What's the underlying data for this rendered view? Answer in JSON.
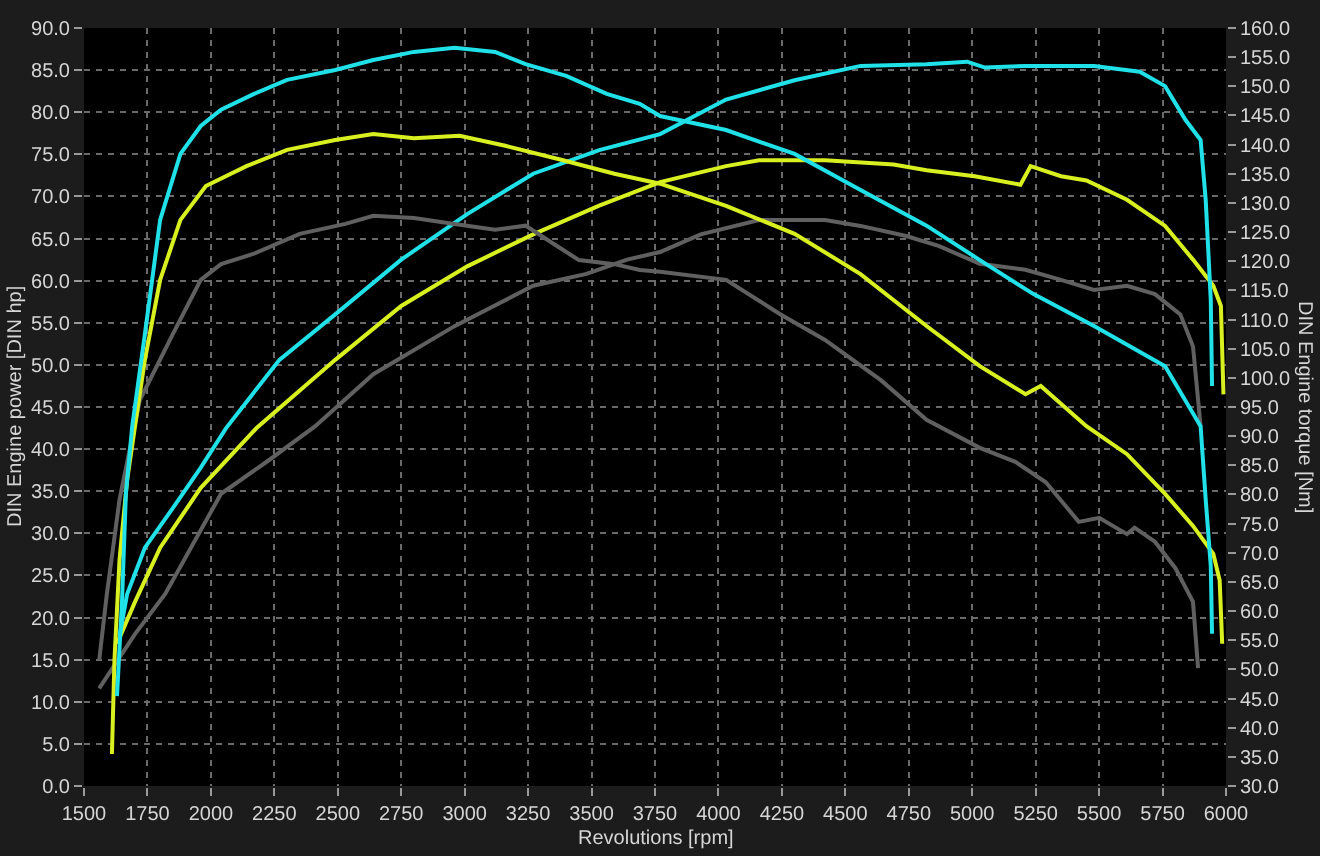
{
  "chart_data": {
    "type": "line",
    "xlabel": "Revolutions [rpm]",
    "ylabel": "DIN Engine power [DIN hp]",
    "y2label": "DIN Engine torque [Nm]",
    "xlim": [
      1500,
      6000
    ],
    "xticks": [
      1500,
      1750,
      2000,
      2250,
      2500,
      2750,
      3000,
      3250,
      3500,
      3750,
      4000,
      4250,
      4500,
      4750,
      5000,
      5250,
      5500,
      5750,
      6000
    ],
    "ylim": [
      0,
      90
    ],
    "yticks": [
      {
        "value": 0,
        "label": "0.0"
      },
      {
        "value": 5,
        "label": "5.0"
      },
      {
        "value": 10,
        "label": "10.0"
      },
      {
        "value": 15,
        "label": "15.0"
      },
      {
        "value": 20,
        "label": "20.0"
      },
      {
        "value": 25,
        "label": "25.0"
      },
      {
        "value": 30,
        "label": "30.0"
      },
      {
        "value": 35,
        "label": "35.0"
      },
      {
        "value": 40,
        "label": "40.0"
      },
      {
        "value": 45,
        "label": "45.0"
      },
      {
        "value": 50,
        "label": "50.0"
      },
      {
        "value": 55,
        "label": "55.0"
      },
      {
        "value": 60,
        "label": "60.0"
      },
      {
        "value": 65,
        "label": "65.0"
      },
      {
        "value": 70,
        "label": "70.0"
      },
      {
        "value": 75,
        "label": "75.0"
      },
      {
        "value": 80,
        "label": "80.0"
      },
      {
        "value": 85,
        "label": "85.0"
      },
      {
        "value": 90,
        "label": "90.0"
      }
    ],
    "y2lim": [
      30,
      160
    ],
    "y2ticks": [
      {
        "value": 30,
        "label": "30.0"
      },
      {
        "value": 35,
        "label": "35.0"
      },
      {
        "value": 40,
        "label": "40.0"
      },
      {
        "value": 45,
        "label": "45.0"
      },
      {
        "value": 50,
        "label": "50.0"
      },
      {
        "value": 55,
        "label": "55.0"
      },
      {
        "value": 60,
        "label": "60.0"
      },
      {
        "value": 65,
        "label": "65.0"
      },
      {
        "value": 70,
        "label": "70.0"
      },
      {
        "value": 75,
        "label": "75.0"
      },
      {
        "value": 80,
        "label": "80.0"
      },
      {
        "value": 85,
        "label": "85.0"
      },
      {
        "value": 90,
        "label": "90.0"
      },
      {
        "value": 95,
        "label": "95.0"
      },
      {
        "value": 100,
        "label": "100.0"
      },
      {
        "value": 105,
        "label": "105.0"
      },
      {
        "value": 110,
        "label": "110.0"
      },
      {
        "value": 115,
        "label": "115.0"
      },
      {
        "value": 120,
        "label": "120.0"
      },
      {
        "value": 125,
        "label": "125.0"
      },
      {
        "value": 130,
        "label": "130.0"
      },
      {
        "value": 135,
        "label": "135.0"
      },
      {
        "value": 140,
        "label": "140.0"
      },
      {
        "value": 145,
        "label": "145.0"
      },
      {
        "value": 150,
        "label": "150.0"
      },
      {
        "value": 155,
        "label": "155.0"
      },
      {
        "value": 160,
        "label": "160.0"
      }
    ],
    "grid": true,
    "marker": "none",
    "line_style": "solid",
    "series": [
      {
        "color": "#606060",
        "axis": "y2",
        "x": [
          1560,
          1590,
          1640,
          1720,
          1850,
          1960,
          2040,
          2170,
          2350,
          2530,
          2640,
          2800,
          2960,
          3120,
          3240,
          3350,
          3450,
          3590,
          3690,
          3770,
          4030,
          4240,
          4420,
          4640,
          4820,
          5030,
          5170,
          5290,
          5420,
          5500,
          5610,
          5640,
          5720,
          5800,
          5870,
          5890
        ],
        "values": [
          51.6,
          62.9,
          79.1,
          96.2,
          107.5,
          116.8,
          119.5,
          121.3,
          124.7,
          126.4,
          127.8,
          127.4,
          126.4,
          125.4,
          126.1,
          123.0,
          120.2,
          119.5,
          118.5,
          118.2,
          116.8,
          111.0,
          106.5,
          99.6,
          92.8,
          88.0,
          85.6,
          82.1,
          75.3,
          76.0,
          73.2,
          74.3,
          71.9,
          67.4,
          61.6,
          50.2
        ]
      },
      {
        "color": "#606060",
        "x": [
          1560,
          1700,
          1820,
          2040,
          2220,
          2410,
          2640,
          2960,
          3270,
          3480,
          3640,
          3770,
          3930,
          4160,
          4420,
          4560,
          4740,
          4870,
          5030,
          5210,
          5350,
          5480,
          5610,
          5720,
          5820,
          5870,
          5900
        ],
        "values": [
          11.6,
          18.0,
          22.8,
          34.7,
          38.5,
          42.7,
          48.9,
          54.6,
          59.4,
          60.8,
          62.5,
          63.4,
          65.5,
          67.2,
          67.2,
          66.5,
          65.3,
          64.1,
          62.0,
          61.3,
          60.1,
          58.9,
          59.4,
          58.4,
          56.0,
          52.2,
          42.7
        ]
      },
      {
        "color": "#d8f020",
        "axis": "y2",
        "x": [
          1610,
          1620,
          1640,
          1670,
          1700,
          1740,
          1800,
          1880,
          1980,
          2140,
          2300,
          2490,
          2640,
          2800,
          2980,
          3160,
          3380,
          3590,
          3770,
          4030,
          4300,
          4560,
          4820,
          5030,
          5210,
          5270,
          5450,
          5610,
          5760,
          5870,
          5950,
          5975,
          5985
        ],
        "values": [
          35.5,
          51.6,
          68.8,
          82.5,
          91.4,
          103.1,
          116.8,
          127.1,
          132.9,
          136.3,
          139.1,
          140.8,
          141.8,
          141.1,
          141.5,
          139.8,
          137.4,
          135.0,
          133.3,
          129.5,
          124.7,
          117.8,
          108.9,
          102.0,
          97.2,
          98.6,
          91.7,
          86.9,
          80.1,
          74.6,
          69.8,
          65.3,
          54.4
        ]
      },
      {
        "color": "#d8f020",
        "x": [
          1630,
          1700,
          1800,
          1960,
          2180,
          2490,
          2750,
          3010,
          3270,
          3530,
          3770,
          4030,
          4160,
          4420,
          4690,
          4820,
          5010,
          5190,
          5230,
          5350,
          5450,
          5610,
          5760,
          5870,
          5950,
          5980,
          5990
        ],
        "values": [
          16.9,
          21.8,
          28.3,
          35.4,
          42.5,
          50.6,
          57.0,
          61.7,
          65.5,
          68.9,
          71.7,
          73.6,
          74.3,
          74.3,
          73.8,
          73.1,
          72.4,
          71.4,
          73.6,
          72.4,
          71.9,
          69.6,
          66.5,
          62.5,
          59.4,
          57.0,
          46.5
        ]
      },
      {
        "color": "#20e0e8",
        "axis": "y2",
        "x": [
          1630,
          1650,
          1665,
          1690,
          1740,
          1800,
          1880,
          1960,
          2040,
          2170,
          2300,
          2490,
          2640,
          2800,
          2960,
          3120,
          3240,
          3400,
          3560,
          3690,
          3770,
          4030,
          4300,
          4560,
          4820,
          5030,
          5240,
          5480,
          5760,
          5900,
          5920,
          5940,
          5945
        ],
        "values": [
          45.4,
          61.9,
          80.1,
          91.7,
          107.5,
          127.1,
          138.4,
          143.2,
          146.0,
          148.7,
          151.1,
          152.8,
          154.5,
          155.9,
          156.6,
          155.9,
          153.8,
          151.8,
          148.7,
          147.0,
          144.9,
          142.5,
          138.4,
          132.2,
          126.1,
          120.2,
          114.4,
          108.9,
          102.0,
          91.7,
          79.1,
          67.7,
          56.1
        ]
      },
      {
        "color": "#20e0e8",
        "x": [
          1640,
          1670,
          1740,
          1850,
          1960,
          2060,
          2270,
          2490,
          2750,
          3010,
          3270,
          3530,
          3770,
          4030,
          4300,
          4560,
          4820,
          4980,
          5050,
          5210,
          5480,
          5660,
          5760,
          5840,
          5900,
          5920,
          5940,
          5945
        ],
        "values": [
          17.8,
          22.8,
          28.3,
          33.0,
          37.8,
          42.5,
          50.6,
          56.0,
          62.5,
          67.9,
          72.7,
          75.5,
          77.4,
          81.5,
          83.8,
          85.5,
          85.7,
          86.0,
          85.3,
          85.5,
          85.5,
          84.8,
          83.1,
          79.1,
          76.7,
          69.6,
          57.7,
          47.5
        ]
      }
    ]
  }
}
